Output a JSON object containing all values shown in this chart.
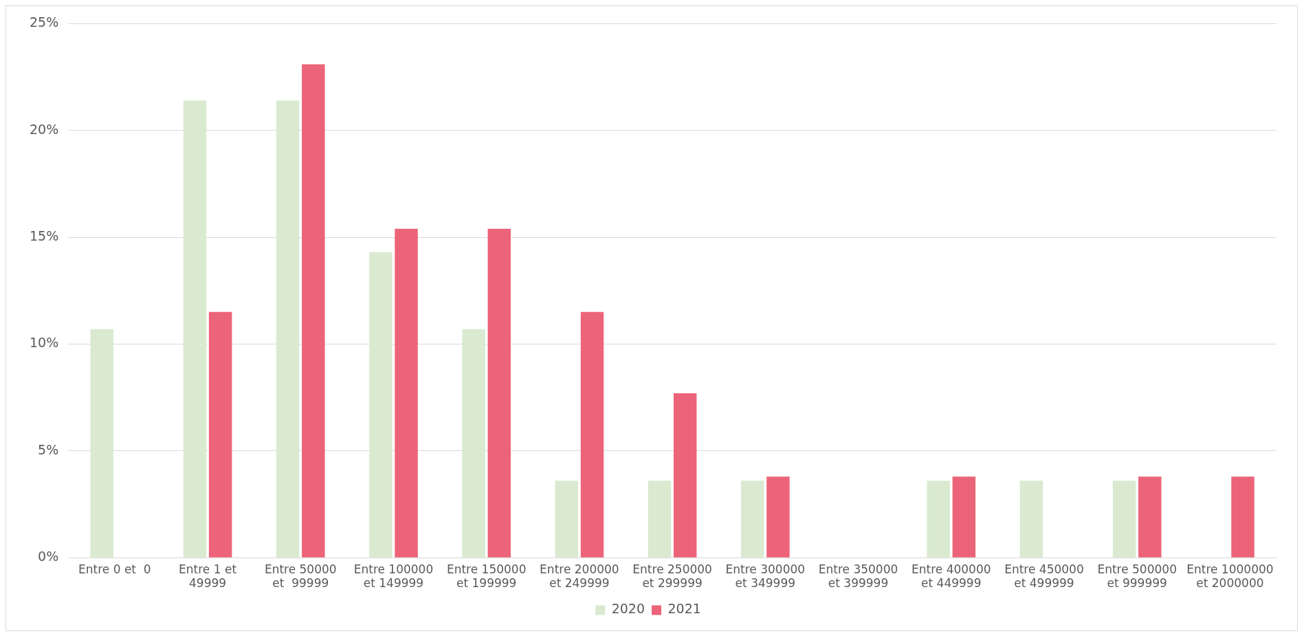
{
  "chart_data": {
    "type": "bar",
    "categories": [
      "Entre 0 et  0",
      "Entre 1 et 49999",
      "Entre 50000 et  99999",
      "Entre 100000 et 149999",
      "Entre 150000 et 199999",
      "Entre 200000 et 249999",
      "Entre 250000 et 299999",
      "Entre 300000 et 349999",
      "Entre 350000 et 399999",
      "Entre 400000 et 449999",
      "Entre 450000 et 499999",
      "Entre 500000 et 999999",
      "Entre 1000000 et 2000000"
    ],
    "series": [
      {
        "name": "2020",
        "color": "#d9ead0",
        "values": [
          10.7,
          21.4,
          21.4,
          14.3,
          10.7,
          3.6,
          3.6,
          3.6,
          0,
          3.6,
          3.6,
          3.6,
          0
        ]
      },
      {
        "name": "2021",
        "color": "#ec6479",
        "values": [
          0,
          11.5,
          23.1,
          15.4,
          15.4,
          11.5,
          7.7,
          3.8,
          0,
          3.8,
          0,
          3.8,
          3.8
        ]
      }
    ],
    "ylim": [
      0,
      25
    ],
    "yticks": [
      {
        "value": 0,
        "label": "0%"
      },
      {
        "value": 5,
        "label": "5%"
      },
      {
        "value": 10,
        "label": "10%"
      },
      {
        "value": 15,
        "label": "15%"
      },
      {
        "value": 20,
        "label": "20%"
      },
      {
        "value": 25,
        "label": "25%"
      }
    ],
    "grid": "y",
    "legend": "bottom"
  }
}
